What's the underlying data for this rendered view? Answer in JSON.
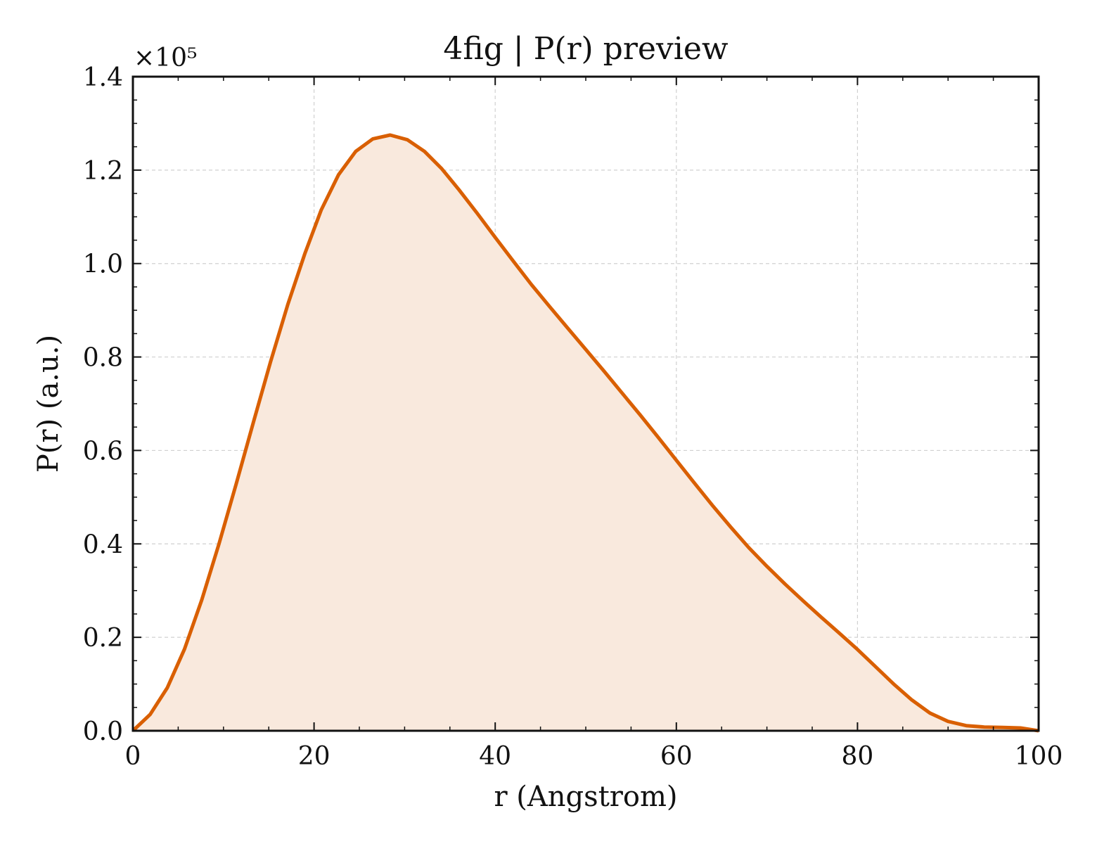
{
  "chart_data": {
    "type": "area",
    "title": "4fig | P(r) preview",
    "xlabel": "r (Angstrom)",
    "ylabel": "P(r) (a.u.)",
    "y_multiplier_label": "×10⁵",
    "xlim": [
      0,
      100
    ],
    "ylim": [
      0,
      1.4
    ],
    "x_ticks": [
      0,
      20,
      40,
      60,
      80,
      100
    ],
    "x_tick_labels": [
      "0",
      "20",
      "40",
      "60",
      "80",
      "100"
    ],
    "y_ticks": [
      0,
      0.2,
      0.4,
      0.6,
      0.8,
      1.0,
      1.2,
      1.4
    ],
    "y_tick_labels": [
      "0.0",
      "0.2",
      "0.4",
      "0.6",
      "0.8",
      "1.0",
      "1.2",
      "1.4"
    ],
    "grid": true,
    "colors": {
      "line": "#d95f02",
      "fill": "#f9e9dd",
      "grid": "#d0d0d0"
    },
    "series": [
      {
        "x": [
          0,
          1.9,
          3.8,
          5.7,
          7.6,
          9.5,
          11.4,
          13.3,
          15.2,
          17.1,
          19.0,
          20.8,
          22.7,
          24.6,
          26.5,
          28.4,
          30.3,
          32.2,
          34.1,
          36.0,
          38.0,
          40.0,
          42.0,
          44.0,
          46.0,
          48.0,
          50.0,
          52.0,
          54.0,
          56.0,
          58.0,
          60.0,
          62.0,
          64.0,
          66.0,
          68.0,
          70.0,
          72.0,
          74.0,
          76.0,
          78.0,
          80.0,
          82.0,
          84.0,
          86.0,
          88.0,
          90.0,
          92.0,
          94.0,
          96.0,
          98.0,
          100.0
        ],
        "y": [
          0.0,
          0.035,
          0.092,
          0.175,
          0.28,
          0.4,
          0.528,
          0.66,
          0.79,
          0.912,
          1.022,
          1.115,
          1.19,
          1.24,
          1.267,
          1.275,
          1.265,
          1.24,
          1.203,
          1.158,
          1.108,
          1.056,
          1.005,
          0.955,
          0.908,
          0.862,
          0.816,
          0.77,
          0.723,
          0.676,
          0.628,
          0.579,
          0.53,
          0.482,
          0.436,
          0.392,
          0.352,
          0.314,
          0.278,
          0.243,
          0.209,
          0.174,
          0.137,
          0.1,
          0.066,
          0.038,
          0.02,
          0.011,
          0.008,
          0.007,
          0.006,
          0.0
        ]
      }
    ]
  }
}
